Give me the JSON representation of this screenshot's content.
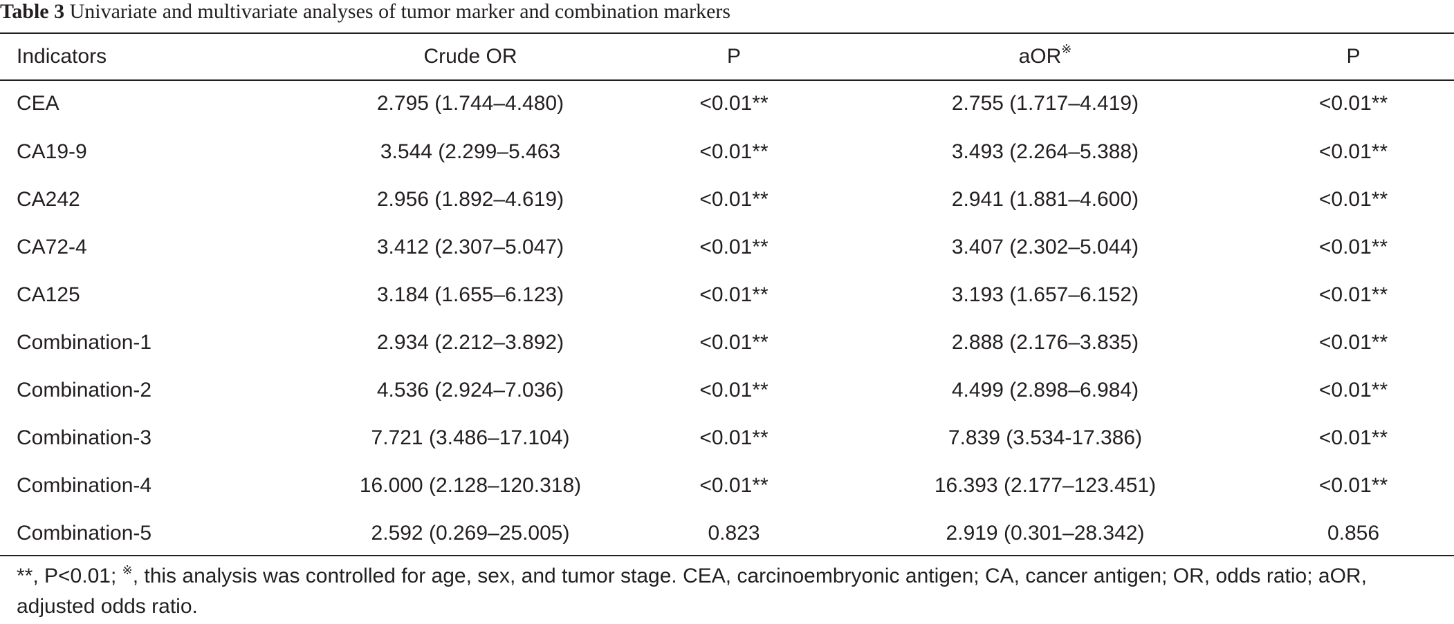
{
  "caption": {
    "label": "Table 3",
    "text": "Univariate and multivariate analyses of tumor marker and combination markers"
  },
  "columns": [
    "Indicators",
    "Crude OR",
    "P",
    "aOR",
    "P"
  ],
  "column_marks": [
    "",
    "",
    "",
    "※",
    ""
  ],
  "rows": [
    [
      "CEA",
      "2.795 (1.744–4.480)",
      "<0.01**",
      "2.755 (1.717–4.419)",
      "<0.01**"
    ],
    [
      "CA19-9",
      "3.544 (2.299–5.463",
      "<0.01**",
      "3.493 (2.264–5.388)",
      "<0.01**"
    ],
    [
      "CA242",
      "2.956 (1.892–4.619)",
      "<0.01**",
      "2.941 (1.881–4.600)",
      "<0.01**"
    ],
    [
      "CA72-4",
      "3.412 (2.307–5.047)",
      "<0.01**",
      "3.407 (2.302–5.044)",
      "<0.01**"
    ],
    [
      "CA125",
      "3.184 (1.655–6.123)",
      "<0.01**",
      "3.193 (1.657–6.152)",
      "<0.01**"
    ],
    [
      "Combination-1",
      "2.934 (2.212–3.892)",
      "<0.01**",
      "2.888 (2.176–3.835)",
      "<0.01**"
    ],
    [
      "Combination-2",
      "4.536 (2.924–7.036)",
      "<0.01**",
      "4.499 (2.898–6.984)",
      "<0.01**"
    ],
    [
      "Combination-3",
      "7.721 (3.486–17.104)",
      "<0.01**",
      "7.839 (3.534-17.386)",
      "<0.01**"
    ],
    [
      "Combination-4",
      "16.000 (2.128–120.318)",
      "<0.01**",
      "16.393 (2.177–123.451)",
      "<0.01**"
    ],
    [
      "Combination-5",
      "2.592 (0.269–25.005)",
      "0.823",
      "2.919 (0.301–28.342)",
      "0.856"
    ]
  ],
  "footnote": {
    "part1": "**, P<0.01; ",
    "mark": "※",
    "part2": ", this analysis was controlled for age, sex, and tumor stage. CEA, carcinoembryonic antigen; CA, cancer antigen; OR, odds ratio; aOR, adjusted odds ratio."
  }
}
